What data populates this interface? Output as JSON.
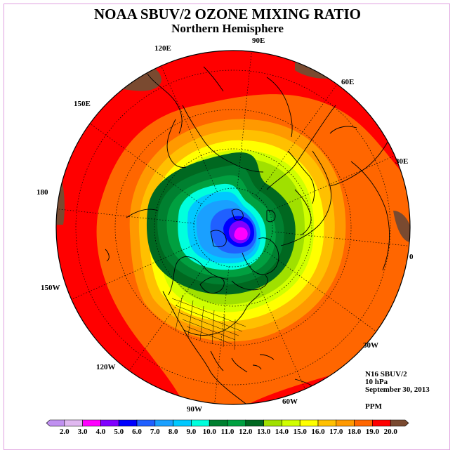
{
  "title": "NOAA SBUV/2 OZONE MIXING RATIO",
  "subtitle": "Northern Hemisphere",
  "longitude_labels": [
    "90E",
    "60E",
    "30E",
    "0",
    "30W",
    "60W",
    "90W",
    "120W",
    "150W",
    "180",
    "150E",
    "120E"
  ],
  "info": {
    "instrument": "N16 SBUV/2",
    "pressure": "10 hPa",
    "date": "September 30, 2013",
    "units": "PPM"
  },
  "colorbar": {
    "levels": [
      "2.0",
      "3.0",
      "4.0",
      "5.0",
      "6.0",
      "7.0",
      "8.0",
      "9.0",
      "10.0",
      "11.0",
      "12.0",
      "13.0",
      "14.0",
      "15.0",
      "16.0",
      "17.0",
      "18.0",
      "19.0",
      "20.0"
    ],
    "colors": [
      "#c090f0",
      "#e0b8f0",
      "#ff00ff",
      "#8000ff",
      "#0000ff",
      "#2060ff",
      "#1aa0ff",
      "#00c8ff",
      "#00ffdd",
      "#008030",
      "#00a040",
      "#006820",
      "#a0e000",
      "#d0ff00",
      "#ffff00",
      "#ffc000",
      "#ff9900",
      "#ff6600",
      "#ff0000",
      "#7a4a30"
    ]
  },
  "colors": {
    "coast": "#000000",
    "graticule": "#000000",
    "frame": "#e0a0e0"
  }
}
